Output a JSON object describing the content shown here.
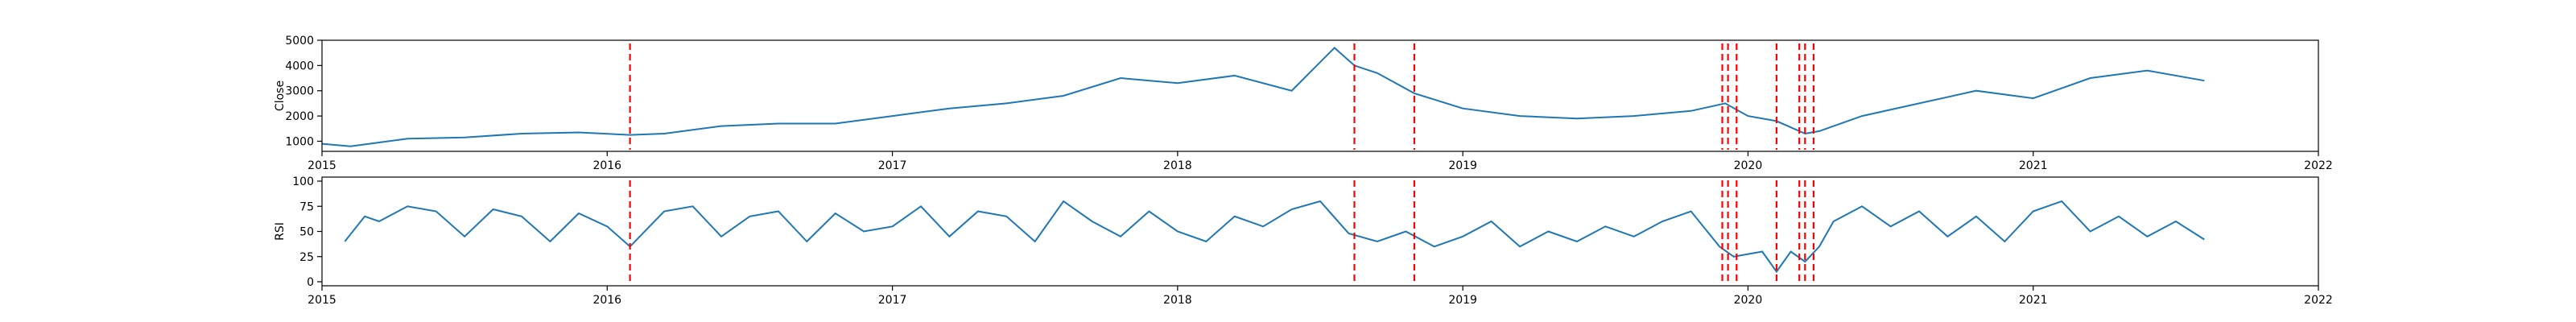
{
  "chart_data": [
    {
      "type": "line",
      "title": "",
      "xlabel": "",
      "ylabel": "Close",
      "xlim": [
        2015.0,
        2022.0
      ],
      "ylim": [
        600,
        5000
      ],
      "x_ticks": [
        2015,
        2016,
        2017,
        2018,
        2019,
        2020,
        2021,
        2022
      ],
      "x_tick_labels": [
        "2015",
        "2016",
        "2017",
        "2018",
        "2019",
        "2020",
        "2021",
        "2022"
      ],
      "y_ticks": [
        1000,
        2000,
        3000,
        4000,
        5000
      ],
      "y_tick_labels": [
        "1000",
        "2000",
        "3000",
        "4000",
        "5000"
      ],
      "grid": false,
      "line_color": "#1f77b4",
      "marker_color": "#ff0000",
      "series": [
        {
          "x": [
            2015.0,
            2015.1,
            2015.3,
            2015.5,
            2015.7,
            2015.9,
            2016.08,
            2016.2,
            2016.4,
            2016.6,
            2016.8,
            2017.0,
            2017.2,
            2017.4,
            2017.6,
            2017.8,
            2018.0,
            2018.2,
            2018.4,
            2018.55,
            2018.62,
            2018.7,
            2018.83,
            2019.0,
            2019.2,
            2019.4,
            2019.6,
            2019.8,
            2019.92,
            2020.0,
            2020.1,
            2020.2,
            2020.25,
            2020.4,
            2020.6,
            2020.8,
            2021.0,
            2021.2,
            2021.4,
            2021.6
          ],
          "values": [
            900,
            800,
            1100,
            1150,
            1300,
            1350,
            1250,
            1300,
            1600,
            1700,
            1700,
            2000,
            2300,
            2500,
            2800,
            3500,
            3300,
            3600,
            3000,
            4700,
            4000,
            3700,
            2900,
            2300,
            2000,
            1900,
            2000,
            2200,
            2500,
            2000,
            1800,
            1300,
            1400,
            2000,
            2500,
            3000,
            2700,
            3500,
            3800,
            3400
          ]
        }
      ],
      "event_markers_x": [
        2016.08,
        2018.62,
        2018.83,
        2019.91,
        2019.93,
        2019.96,
        2020.1,
        2020.18,
        2020.2,
        2020.23
      ]
    },
    {
      "type": "line",
      "title": "",
      "xlabel": "",
      "ylabel": "RSI",
      "xlim": [
        2015.0,
        2022.0
      ],
      "ylim": [
        -4,
        104
      ],
      "x_ticks": [
        2015,
        2016,
        2017,
        2018,
        2019,
        2020,
        2021,
        2022
      ],
      "x_tick_labels": [
        "2015",
        "2016",
        "2017",
        "2018",
        "2019",
        "2020",
        "2021",
        "2022"
      ],
      "y_ticks": [
        0,
        25,
        50,
        75,
        100
      ],
      "y_tick_labels": [
        "0",
        "25",
        "50",
        "75",
        "100"
      ],
      "grid": false,
      "line_color": "#1f77b4",
      "marker_color": "#ff0000",
      "series": [
        {
          "x": [
            2015.08,
            2015.15,
            2015.2,
            2015.3,
            2015.4,
            2015.5,
            2015.6,
            2015.7,
            2015.8,
            2015.9,
            2016.0,
            2016.08,
            2016.2,
            2016.3,
            2016.4,
            2016.5,
            2016.6,
            2016.7,
            2016.8,
            2016.9,
            2017.0,
            2017.1,
            2017.2,
            2017.3,
            2017.4,
            2017.5,
            2017.6,
            2017.7,
            2017.8,
            2017.9,
            2018.0,
            2018.1,
            2018.2,
            2018.3,
            2018.4,
            2018.5,
            2018.6,
            2018.7,
            2018.8,
            2018.9,
            2019.0,
            2019.1,
            2019.2,
            2019.3,
            2019.4,
            2019.5,
            2019.6,
            2019.7,
            2019.8,
            2019.9,
            2019.95,
            2020.05,
            2020.1,
            2020.15,
            2020.2,
            2020.25,
            2020.3,
            2020.4,
            2020.5,
            2020.6,
            2020.7,
            2020.8,
            2020.9,
            2021.0,
            2021.1,
            2021.2,
            2021.3,
            2021.4,
            2021.5,
            2021.6
          ],
          "values": [
            40,
            65,
            60,
            75,
            70,
            45,
            72,
            65,
            40,
            68,
            55,
            35,
            70,
            75,
            45,
            65,
            70,
            40,
            68,
            50,
            55,
            75,
            45,
            70,
            65,
            40,
            80,
            60,
            45,
            70,
            50,
            40,
            65,
            55,
            72,
            80,
            48,
            40,
            50,
            35,
            45,
            60,
            35,
            50,
            40,
            55,
            45,
            60,
            70,
            35,
            25,
            30,
            10,
            30,
            20,
            35,
            60,
            75,
            55,
            70,
            45,
            65,
            40,
            70,
            80,
            50,
            65,
            45,
            60,
            42
          ]
        }
      ],
      "event_markers_x": [
        2016.08,
        2018.62,
        2018.83,
        2019.91,
        2019.93,
        2019.96,
        2020.1,
        2020.18,
        2020.2,
        2020.23
      ]
    }
  ]
}
